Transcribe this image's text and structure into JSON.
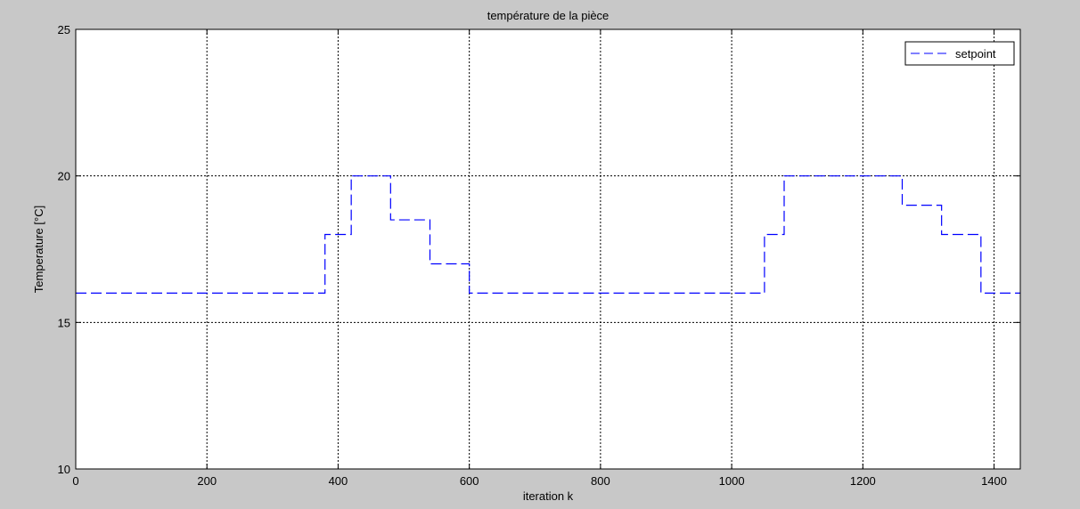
{
  "chart_data": {
    "type": "line",
    "title": "température de la pièce",
    "xlabel": "iteration k",
    "ylabel": "Temperature [°C]",
    "xlim": [
      0,
      1440
    ],
    "ylim": [
      10,
      25
    ],
    "x_ticks": [
      0,
      200,
      400,
      600,
      800,
      1000,
      1200,
      1400
    ],
    "y_ticks": [
      10,
      15,
      20,
      25
    ],
    "grid": true,
    "legend": {
      "placement": "top-right"
    },
    "series": [
      {
        "name": "setpoint",
        "color": "#0000ff",
        "line_style": "dashed",
        "step": true,
        "x": [
          0,
          380,
          420,
          480,
          540,
          600,
          1050,
          1080,
          1260,
          1320,
          1380,
          1440
        ],
        "y": [
          16,
          18,
          20,
          18.5,
          17,
          16,
          18,
          20,
          19,
          18,
          16,
          16
        ]
      }
    ]
  }
}
